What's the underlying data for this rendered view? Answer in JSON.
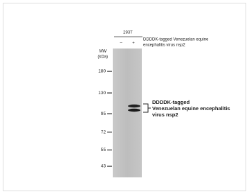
{
  "blot": {
    "cell_line": "293T",
    "lanes": [
      "–",
      "+"
    ],
    "lane_description": [
      "DDDDK-tagged Venezuelan equine",
      "encephalitis virus nsp2"
    ],
    "mw_label": [
      "MW",
      "(kDa)"
    ],
    "markers": [
      180,
      130,
      95,
      72,
      55,
      43
    ],
    "band_label": [
      "DDDDK-tagged",
      "Venezuelan equine encephalitis",
      "virus nsp2"
    ]
  }
}
